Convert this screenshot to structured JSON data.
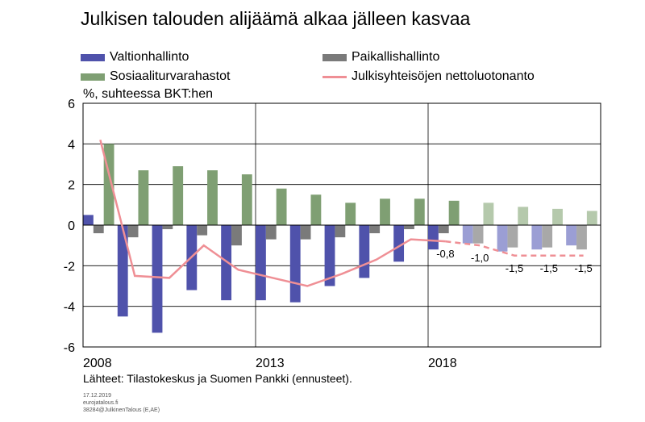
{
  "title": "Julkisen talouden alijäämä alkaa jälleen kasvaa",
  "unit_label": "%, suhteessa BKT:hen",
  "source": "Lähteet: Tilastokeskus ja Suomen Pankki (ennusteet).",
  "footer": {
    "date": "17.12.2019",
    "site": "eurojatalous.fi",
    "code": "38284@JulkinenTalous  (E,AE)"
  },
  "colors": {
    "valtio": "#4f52ab",
    "valtio_forecast": "#9b9ed4",
    "paikallis": "#7a7a7a",
    "paikallis_forecast": "#a8a8a8",
    "sosiaali": "#7f9f73",
    "sosiaali_forecast": "#b5c9ac",
    "netto": "#ef8f95"
  },
  "chart_data": {
    "type": "bar",
    "title": "Julkisen talouden alijäämä alkaa jälleen kasvaa",
    "ylabel": "%, suhteessa BKT:hen",
    "ylim": [
      -6,
      6
    ],
    "yticks": [
      "6",
      "4",
      "2",
      "0",
      "-2",
      "-4",
      "-6"
    ],
    "x_tick_labels": [
      "2008",
      "2013",
      "2018"
    ],
    "categories": [
      2008,
      2009,
      2010,
      2011,
      2012,
      2013,
      2014,
      2015,
      2016,
      2017,
      2018,
      2019,
      2020,
      2021,
      2022
    ],
    "forecast_from": 2019,
    "legend": "top",
    "series": [
      {
        "name": "Valtionhallinto",
        "type": "bar",
        "values": [
          0.5,
          -4.5,
          -5.3,
          -3.2,
          -3.7,
          -3.7,
          -3.8,
          -3.0,
          -2.6,
          -1.8,
          -1.2,
          -0.9,
          -1.3,
          -1.2,
          -1.0
        ]
      },
      {
        "name": "Paikallishallinto",
        "type": "bar",
        "values": [
          -0.4,
          -0.6,
          -0.2,
          -0.5,
          -1.0,
          -0.7,
          -0.7,
          -0.6,
          -0.4,
          -0.2,
          -0.4,
          -0.9,
          -1.1,
          -1.1,
          -1.2
        ]
      },
      {
        "name": "Sosiaaliturvarahastot",
        "type": "bar",
        "values": [
          4.0,
          2.7,
          2.9,
          2.7,
          2.5,
          1.8,
          1.5,
          1.1,
          1.3,
          1.3,
          1.2,
          1.1,
          0.9,
          0.8,
          0.7
        ]
      },
      {
        "name": "Julkisyhteisöjen nettoluotonanto",
        "type": "line",
        "values": [
          4.2,
          -2.5,
          -2.6,
          -1.0,
          -2.2,
          -2.6,
          -3.0,
          -2.4,
          -1.7,
          -0.7,
          -0.8,
          -1.0,
          -1.5,
          -1.5,
          -1.5
        ]
      }
    ],
    "data_labels": [
      {
        "year": 2018,
        "text": "-0,8"
      },
      {
        "year": 2019,
        "text": "-1,0"
      },
      {
        "year": 2020,
        "text": "-1,5"
      },
      {
        "year": 2021,
        "text": "-1,5"
      },
      {
        "year": 2022,
        "text": "-1,5"
      }
    ],
    "grid": {
      "horizontal": true,
      "vertical_at": [
        2013,
        2018
      ]
    }
  }
}
